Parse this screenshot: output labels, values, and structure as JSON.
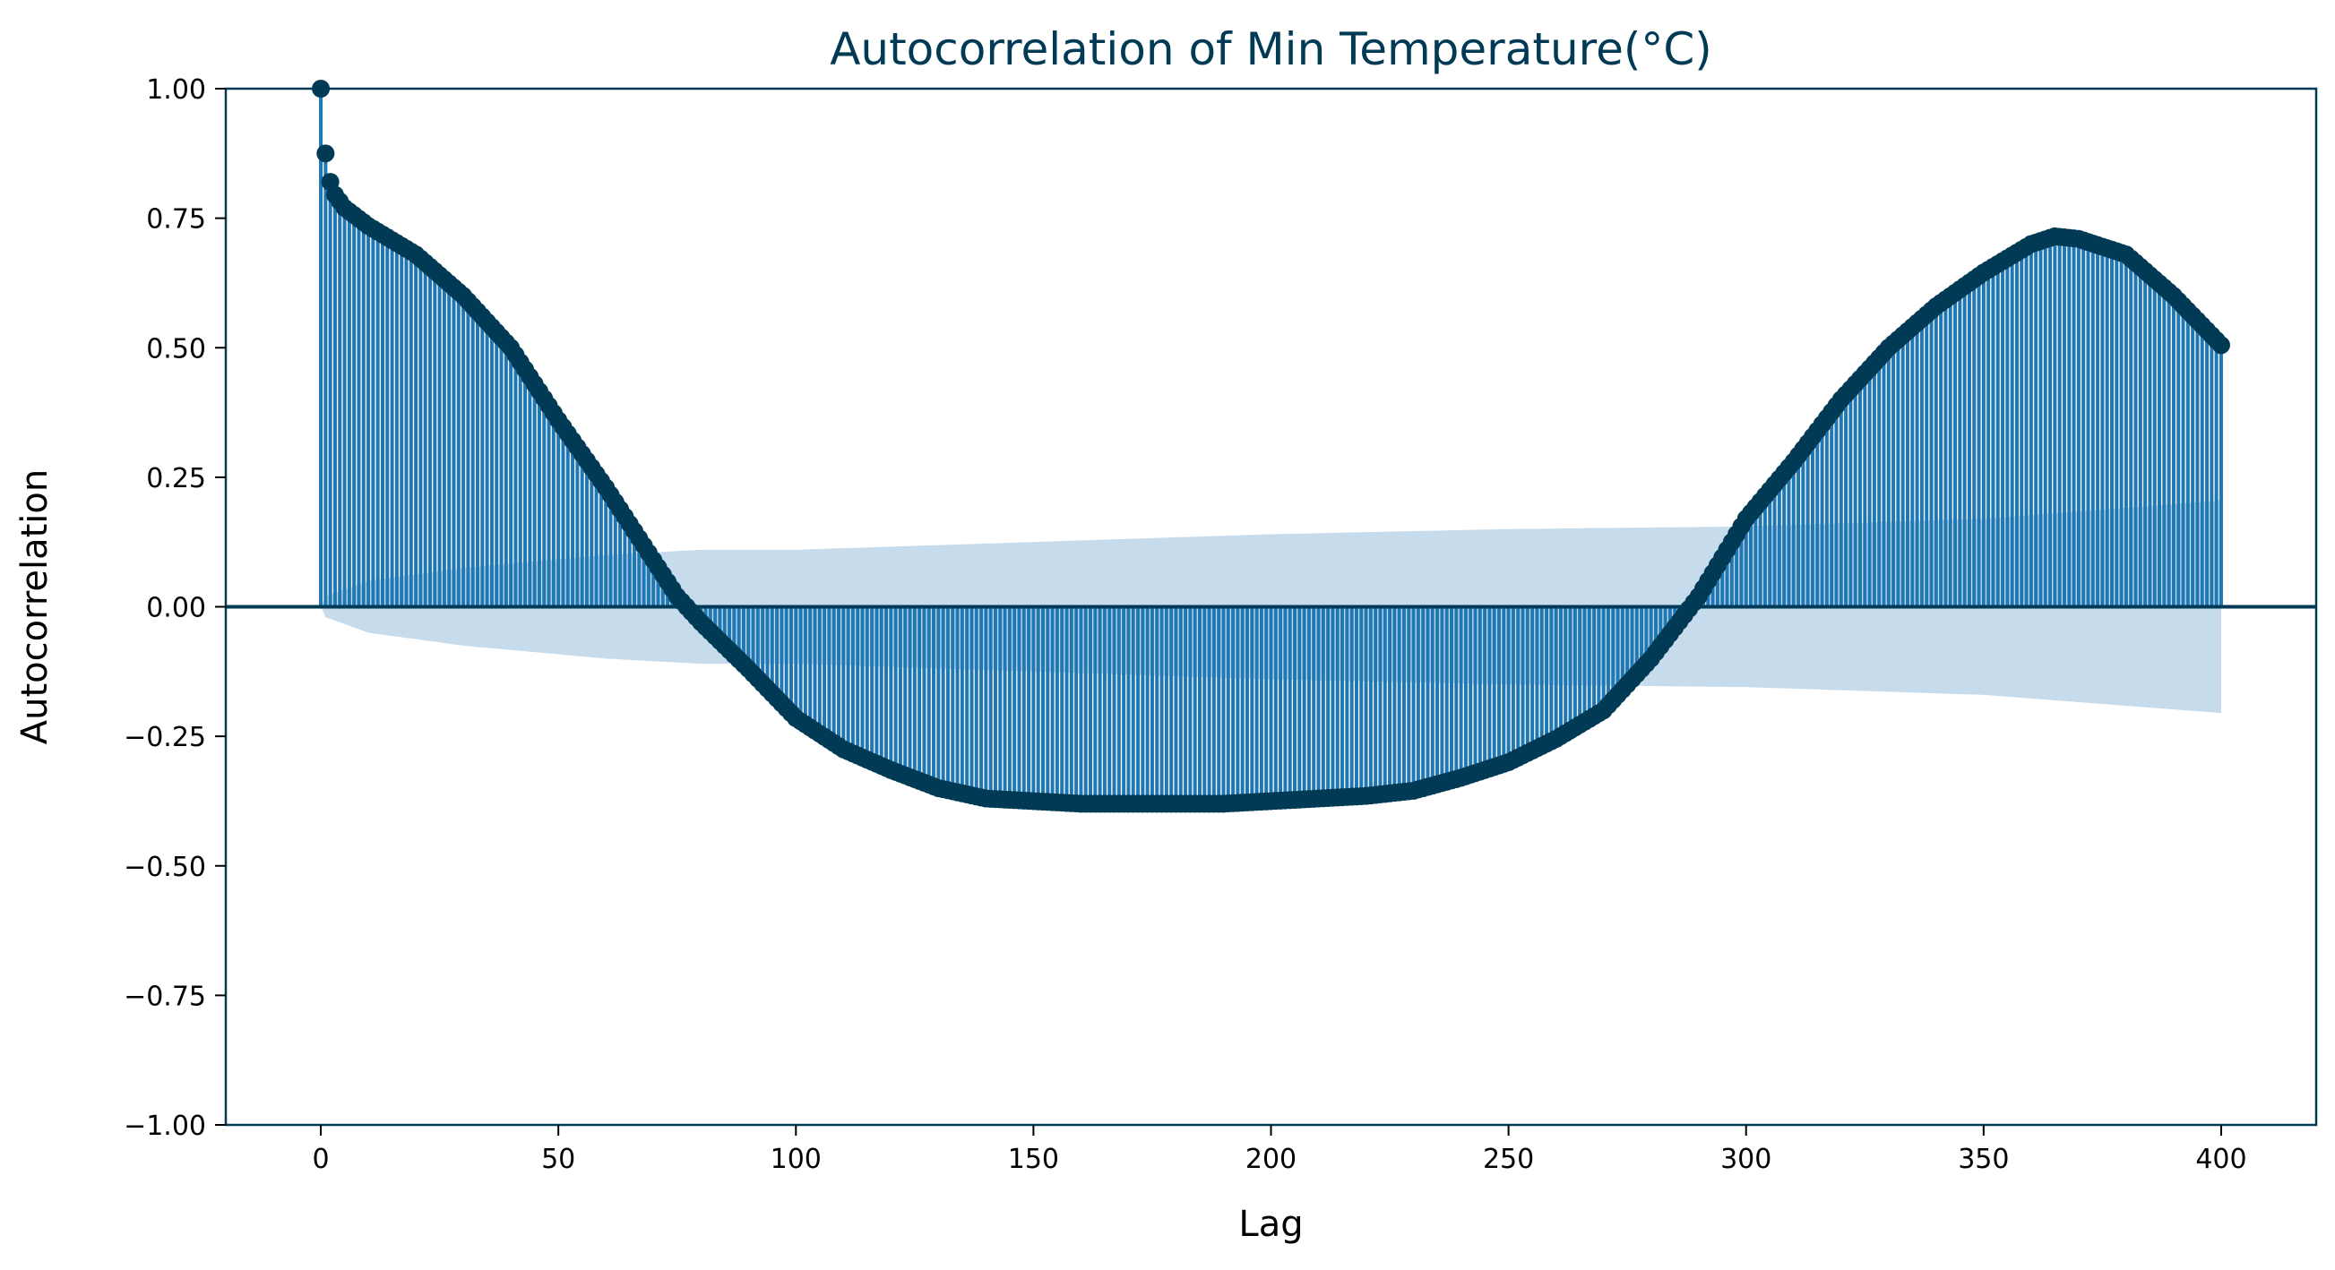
{
  "chart_data": {
    "type": "stem",
    "title": "Autocorrelation of Min Temperature(°C)",
    "xlabel": "Lag",
    "ylabel": "Autocorrelation",
    "xlim": [
      -20,
      420
    ],
    "ylim": [
      -1.0,
      1.0
    ],
    "xticks": [
      0,
      50,
      100,
      150,
      200,
      250,
      300,
      350,
      400
    ],
    "yticks": [
      1.0,
      0.75,
      0.5,
      0.25,
      0.0,
      -0.25,
      -0.5,
      -0.75,
      -1.0
    ],
    "xtick_labels": [
      "0",
      "50",
      "100",
      "150",
      "200",
      "250",
      "300",
      "350",
      "400"
    ],
    "ytick_labels": [
      "1.00",
      "0.75",
      "0.50",
      "0.25",
      "0.00",
      "−0.25",
      "−0.50",
      "−0.75",
      "−1.00"
    ],
    "grid": false,
    "max_lag": 400,
    "acf_anchors": [
      [
        0,
        1.0
      ],
      [
        1,
        0.875
      ],
      [
        2,
        0.82
      ],
      [
        3,
        0.795
      ],
      [
        5,
        0.77
      ],
      [
        10,
        0.735
      ],
      [
        20,
        0.68
      ],
      [
        30,
        0.6
      ],
      [
        40,
        0.5
      ],
      [
        50,
        0.36
      ],
      [
        60,
        0.23
      ],
      [
        70,
        0.09
      ],
      [
        75,
        0.02
      ],
      [
        80,
        -0.03
      ],
      [
        90,
        -0.12
      ],
      [
        100,
        -0.215
      ],
      [
        110,
        -0.275
      ],
      [
        120,
        -0.315
      ],
      [
        130,
        -0.35
      ],
      [
        140,
        -0.37
      ],
      [
        150,
        -0.375
      ],
      [
        160,
        -0.38
      ],
      [
        175,
        -0.38
      ],
      [
        190,
        -0.38
      ],
      [
        200,
        -0.375
      ],
      [
        210,
        -0.37
      ],
      [
        220,
        -0.365
      ],
      [
        230,
        -0.355
      ],
      [
        240,
        -0.33
      ],
      [
        250,
        -0.3
      ],
      [
        260,
        -0.255
      ],
      [
        270,
        -0.2
      ],
      [
        280,
        -0.1
      ],
      [
        290,
        0.02
      ],
      [
        300,
        0.17
      ],
      [
        310,
        0.28
      ],
      [
        320,
        0.4
      ],
      [
        330,
        0.5
      ],
      [
        340,
        0.58
      ],
      [
        350,
        0.645
      ],
      [
        360,
        0.7
      ],
      [
        365,
        0.715
      ],
      [
        370,
        0.71
      ],
      [
        380,
        0.68
      ],
      [
        390,
        0.6
      ],
      [
        400,
        0.505
      ]
    ],
    "confint_upper": [
      [
        0,
        0.0
      ],
      [
        1,
        0.02
      ],
      [
        10,
        0.05
      ],
      [
        30,
        0.075
      ],
      [
        60,
        0.1
      ],
      [
        80,
        0.11
      ],
      [
        100,
        0.11
      ],
      [
        150,
        0.125
      ],
      [
        200,
        0.14
      ],
      [
        250,
        0.15
      ],
      [
        300,
        0.155
      ],
      [
        350,
        0.17
      ],
      [
        400,
        0.205
      ]
    ],
    "colors": {
      "stem": "#1f77b4",
      "marker": "#003a55",
      "confint": "#c6dbec",
      "axis": "#003a55",
      "title": "#003a55"
    }
  }
}
